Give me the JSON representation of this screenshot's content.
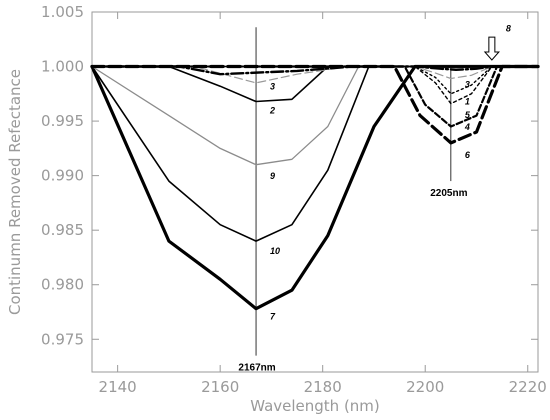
{
  "chart_data": {
    "type": "line",
    "xlabel": "Wavelength (nm)",
    "ylabel": "Continumn Removed Refectance",
    "xlim": [
      2135,
      2222
    ],
    "ylim": [
      0.972,
      1.005
    ],
    "xticks": [
      2140,
      2160,
      2180,
      2200,
      2220
    ],
    "yticks": [
      0.975,
      0.98,
      0.985,
      0.99,
      0.995,
      1.0,
      1.005
    ],
    "ytick_labels": [
      "0.975",
      "0.980",
      "0.985",
      "0.990",
      "0.995",
      "1.000",
      "1.005"
    ],
    "grid": false,
    "reference_lines": [
      {
        "x": 2167,
        "y_range": [
          0.9735,
          1.0036
        ],
        "label": "2167nm"
      },
      {
        "x": 2205,
        "y_range": [
          0.9895,
          1.0
        ],
        "label": "2205nm"
      }
    ],
    "series": [
      {
        "name": "7",
        "color": "#000000",
        "dash": "solid",
        "width": 3.2,
        "x": [
          2135,
          2150,
          2160,
          2167,
          2174,
          2181,
          2190,
          2198,
          2222
        ],
        "y": [
          1.0,
          0.984,
          0.9805,
          0.9778,
          0.9795,
          0.9845,
          0.9945,
          1.0,
          1.0
        ]
      },
      {
        "name": "10",
        "color": "#000000",
        "dash": "solid",
        "width": 1.6,
        "x": [
          2135,
          2150,
          2160,
          2167,
          2174,
          2181,
          2189,
          2222
        ],
        "y": [
          1.0,
          0.9895,
          0.9855,
          0.984,
          0.9855,
          0.9905,
          1.0,
          1.0
        ]
      },
      {
        "name": "9",
        "color": "#8c8c8c",
        "dash": "solid",
        "width": 1.3,
        "x": [
          2135,
          2150,
          2160,
          2167,
          2174,
          2181,
          2187,
          2222
        ],
        "y": [
          1.0,
          0.9955,
          0.9925,
          0.991,
          0.9915,
          0.9945,
          1.0,
          1.0
        ]
      },
      {
        "name": "2",
        "color": "#000000",
        "dash": "solid",
        "width": 1.6,
        "x": [
          2135,
          2150,
          2160,
          2167,
          2174,
          2181,
          2222
        ],
        "y": [
          1.0,
          1.0,
          0.9982,
          0.9968,
          0.997,
          1.0,
          1.0
        ]
      },
      {
        "name": "3",
        "color": "#9a9a9a",
        "dash": "8,4",
        "width": 1.2,
        "x": [
          2135,
          2155,
          2167,
          2175,
          2185,
          2198,
          2202,
          2205,
          2209,
          2213,
          2222
        ],
        "y": [
          1.0,
          1.0,
          0.9985,
          0.9993,
          1.0,
          1.0,
          0.9994,
          0.9989,
          0.9992,
          1.0,
          1.0
        ]
      },
      {
        "name": "1",
        "color": "#000000",
        "dash": "2,3",
        "width": 1.4,
        "x": [
          2135,
          2198,
          2202,
          2205,
          2209,
          2213,
          2222
        ],
        "y": [
          1.0,
          1.0,
          0.999,
          0.9975,
          0.9983,
          1.0,
          1.0
        ]
      },
      {
        "name": "5",
        "color": "#000000",
        "dash": "3,3",
        "width": 1.4,
        "x": [
          2135,
          2198,
          2202,
          2205,
          2209,
          2213,
          2222
        ],
        "y": [
          1.0,
          1.0,
          0.9985,
          0.9966,
          0.9975,
          1.0,
          1.0
        ]
      },
      {
        "name": "4",
        "color": "#000000",
        "dash": "6,3",
        "width": 2.2,
        "x": [
          2135,
          2196,
          2200,
          2205,
          2210,
          2214,
          2222
        ],
        "y": [
          1.0,
          1.0,
          0.9965,
          0.9945,
          0.9955,
          1.0,
          1.0
        ]
      },
      {
        "name": "6",
        "color": "#000000",
        "dash": "12,5",
        "width": 3.2,
        "x": [
          2135,
          2194,
          2199,
          2205,
          2210,
          2215,
          2222
        ],
        "y": [
          1.0,
          1.0,
          0.9955,
          0.993,
          0.994,
          1.0,
          1.0
        ]
      },
      {
        "name": "8",
        "color": "#000000",
        "dash": "12,3,2,3",
        "width": 2.4,
        "x": [
          2135,
          2152,
          2160,
          2175,
          2186,
          2198,
          2203,
          2206,
          2210,
          2213,
          2222
        ],
        "y": [
          1.0,
          1.0,
          0.9993,
          0.9996,
          1.0,
          1.0,
          0.9998,
          0.9997,
          0.9998,
          1.0,
          1.0
        ]
      }
    ],
    "curve_labels": [
      {
        "text": "7",
        "x": 2167,
        "y": 0.9768
      },
      {
        "text": "10",
        "x": 2167,
        "y": 0.9828
      },
      {
        "text": "9",
        "x": 2167,
        "y": 0.9897
      },
      {
        "text": "2",
        "x": 2167,
        "y": 0.9957
      },
      {
        "text": "3",
        "x": 2167,
        "y": 0.9979
      },
      {
        "text": "3",
        "x": 2205,
        "y": 0.9981
      },
      {
        "text": "1",
        "x": 2205,
        "y": 0.9965
      },
      {
        "text": "5",
        "x": 2205,
        "y": 0.9953
      },
      {
        "text": "4",
        "x": 2205,
        "y": 0.9942
      },
      {
        "text": "6",
        "x": 2205,
        "y": 0.9916
      },
      {
        "text": "8",
        "x": 2213,
        "y": 1.0032
      }
    ],
    "arrow_marker": {
      "x": 2213,
      "y_top": 1.0027,
      "y_bottom": 1.0006
    }
  }
}
